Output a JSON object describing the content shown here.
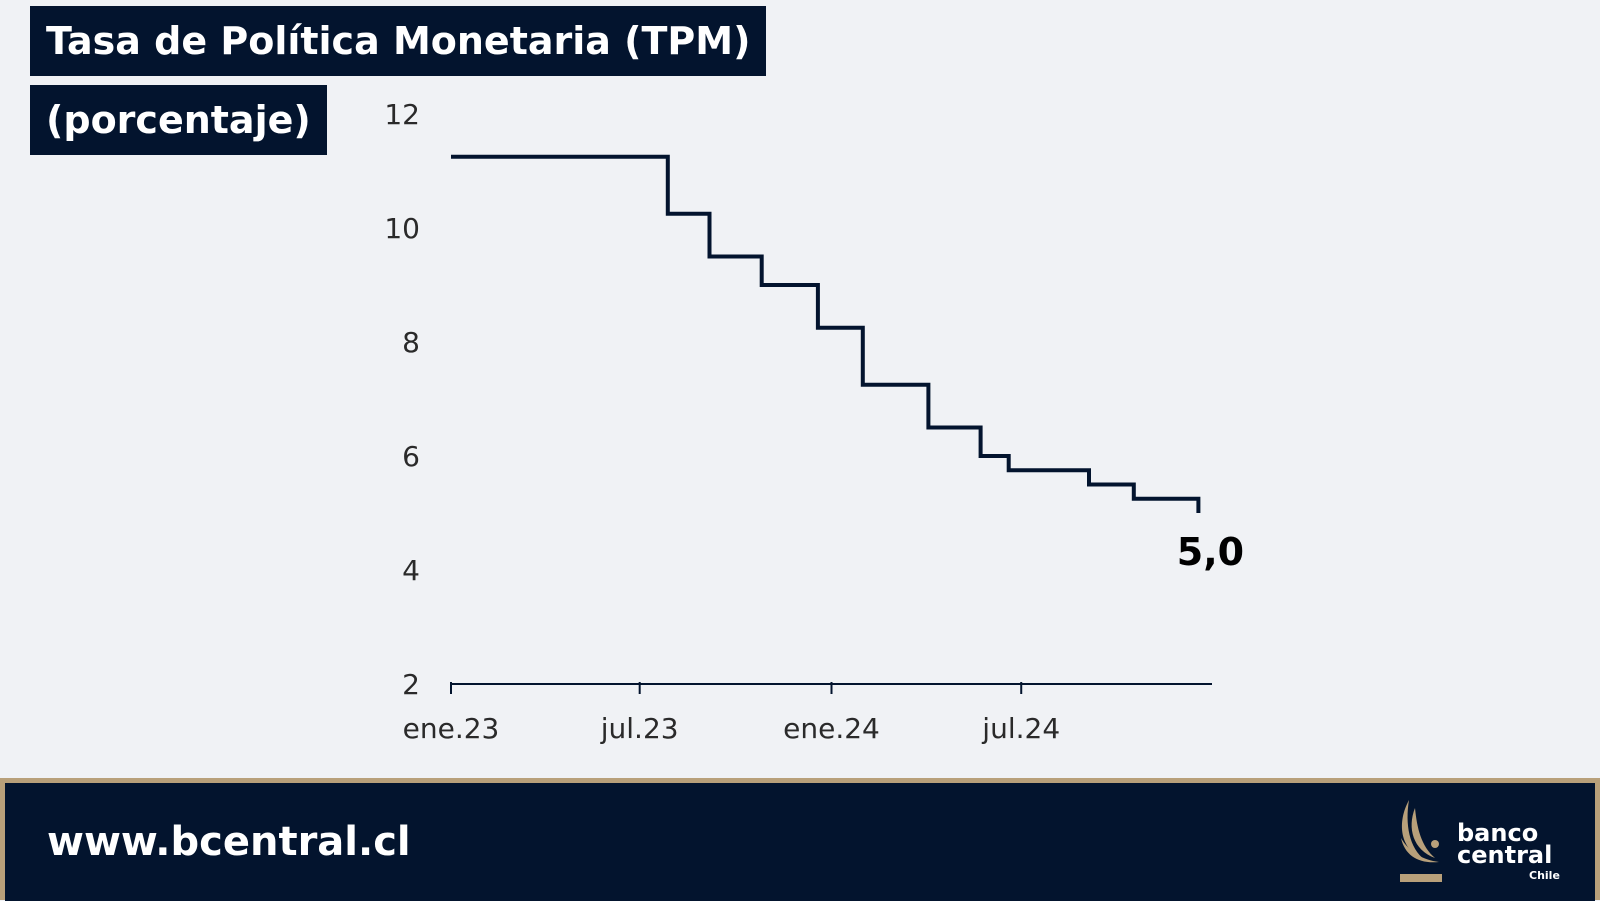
{
  "header": {
    "title": "Tasa de Política Monetaria (TPM)",
    "subtitle": "(porcentaje)"
  },
  "chart_data": {
    "type": "line",
    "title": "Tasa de Política Monetaria (TPM)",
    "subtitle": "(porcentaje)",
    "xlabel": "",
    "ylabel": "",
    "step": true,
    "ylim": [
      2,
      12
    ],
    "yticks": [
      "2",
      "4",
      "6",
      "8",
      "10",
      "12"
    ],
    "xrange": [
      "2023-01-01",
      "2024-12-31"
    ],
    "xticks": [
      {
        "label": "ene.23",
        "date": "2023-01-01"
      },
      {
        "label": "jul.23",
        "date": "2023-07-01"
      },
      {
        "label": "ene.24",
        "date": "2024-01-01"
      },
      {
        "label": "jul.24",
        "date": "2024-07-01"
      }
    ],
    "grid": false,
    "series": [
      {
        "name": "",
        "color": "#03142e",
        "points": [
          {
            "x": "2023-01-01",
            "y": 11.25
          },
          {
            "x": "2023-07-28",
            "y": 10.25
          },
          {
            "x": "2023-09-06",
            "y": 9.5
          },
          {
            "x": "2023-10-26",
            "y": 9.0
          },
          {
            "x": "2023-12-19",
            "y": 8.25
          },
          {
            "x": "2024-01-31",
            "y": 7.25
          },
          {
            "x": "2024-04-03",
            "y": 6.5
          },
          {
            "x": "2024-05-23",
            "y": 6.0
          },
          {
            "x": "2024-06-19",
            "y": 5.75
          },
          {
            "x": "2024-09-04",
            "y": 5.5
          },
          {
            "x": "2024-10-17",
            "y": 5.25
          },
          {
            "x": "2024-12-18",
            "y": 5.0
          }
        ]
      }
    ],
    "annotation": {
      "label": "5,0",
      "value": 5.0
    }
  },
  "footer": {
    "url": "www.bcentral.cl",
    "logo_line1": "banco",
    "logo_line2": "central",
    "logo_line3": "Chile"
  },
  "colors": {
    "background": "#f0f2f5",
    "navy": "#03142e",
    "gold": "#b8a07a"
  }
}
